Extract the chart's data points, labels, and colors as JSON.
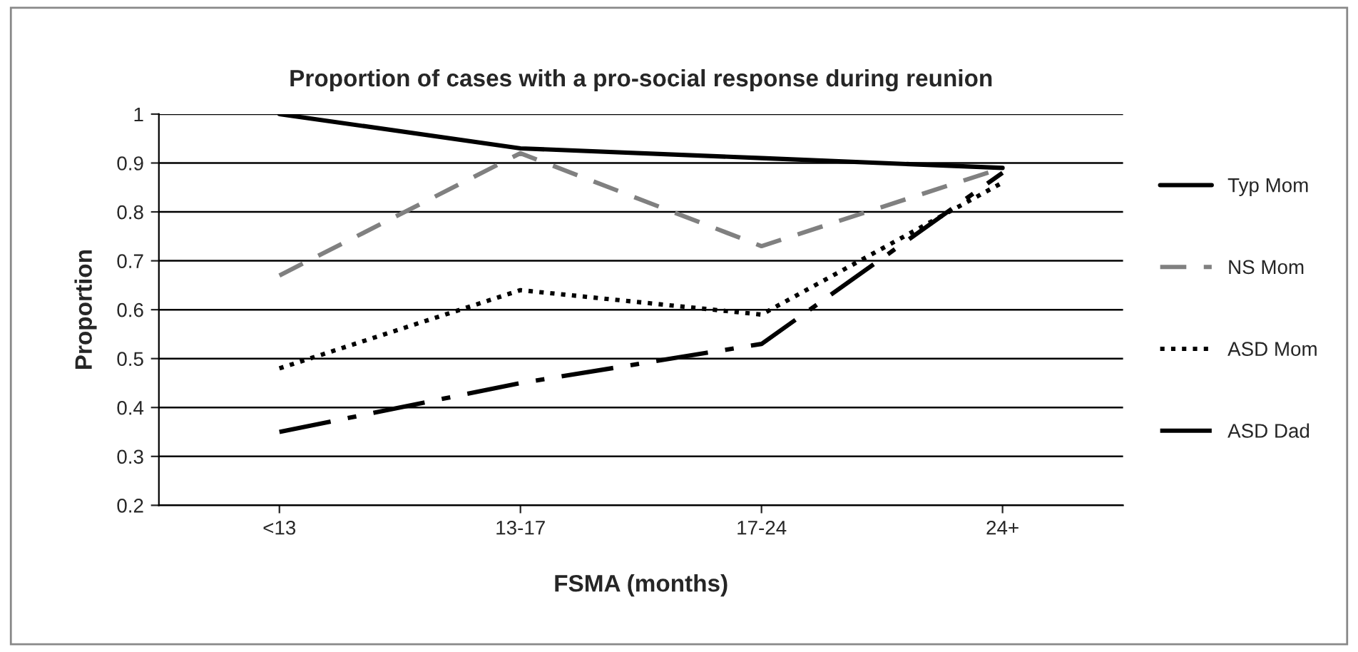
{
  "chart_data": {
    "type": "line",
    "title": "Proportion of cases with a pro-social response during reunion",
    "xlabel": "FSMA (months)",
    "ylabel": "Proportion",
    "categories": [
      "<13",
      "13-17",
      "17-24",
      "24+"
    ],
    "series": [
      {
        "name": "Typ Mom",
        "color": "#000000",
        "line_style": "solid",
        "values": [
          1.0,
          0.93,
          0.91,
          0.89
        ]
      },
      {
        "name": "NS Mom",
        "color": "#808080",
        "line_style": "dashed",
        "values": [
          0.67,
          0.92,
          0.73,
          0.89
        ]
      },
      {
        "name": "ASD Mom",
        "color": "#000000",
        "line_style": "dotted",
        "values": [
          0.48,
          0.64,
          0.59,
          0.86
        ]
      },
      {
        "name": "ASD Dad",
        "color": "#000000",
        "line_style": "dashdot",
        "values": [
          0.35,
          0.45,
          0.53,
          0.88
        ]
      }
    ],
    "ylim": [
      0.2,
      1
    ],
    "yticks": [
      {
        "value": 0.2,
        "label": "0.2"
      },
      {
        "value": 0.3,
        "label": "0.3"
      },
      {
        "value": 0.4,
        "label": "0.4"
      },
      {
        "value": 0.5,
        "label": "0.5"
      },
      {
        "value": 0.6,
        "label": "0.6"
      },
      {
        "value": 0.7,
        "label": "0.7"
      },
      {
        "value": 0.8,
        "label": "0.8"
      },
      {
        "value": 0.9,
        "label": "0.9"
      },
      {
        "value": 1,
        "label": "1"
      }
    ],
    "grid": "y",
    "legend": "right",
    "marker": "none"
  }
}
